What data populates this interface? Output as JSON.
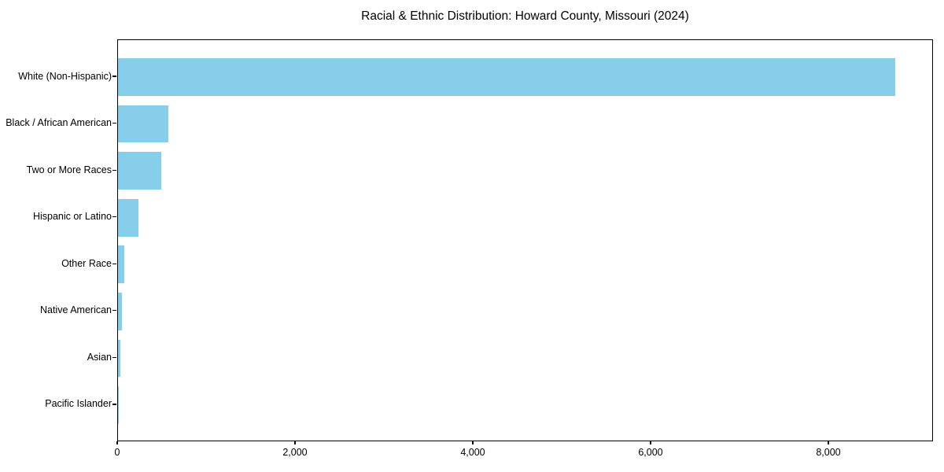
{
  "chart_data": {
    "type": "bar",
    "orientation": "horizontal",
    "title": "Racial & Ethnic Distribution: Howard County, Missouri (2024)",
    "categories": [
      "White (Non-Hispanic)",
      "Black / African American",
      "Two or More Races",
      "Hispanic or Latino",
      "Other Race",
      "Native American",
      "Asian",
      "Pacific Islander"
    ],
    "values": [
      8740,
      565,
      485,
      230,
      70,
      45,
      25,
      2
    ],
    "xlabel": "",
    "ylabel": "",
    "xlim": [
      0,
      9177
    ],
    "xticks": [
      0,
      2000,
      4000,
      6000,
      8000
    ],
    "xtick_labels": [
      "0",
      "2,000",
      "4,000",
      "6,000",
      "8,000"
    ],
    "bar_color": "#87ceeb",
    "axis_color": "#000000",
    "text_color": "#000000",
    "background": "#ffffff",
    "grid": false,
    "legend": null
  }
}
